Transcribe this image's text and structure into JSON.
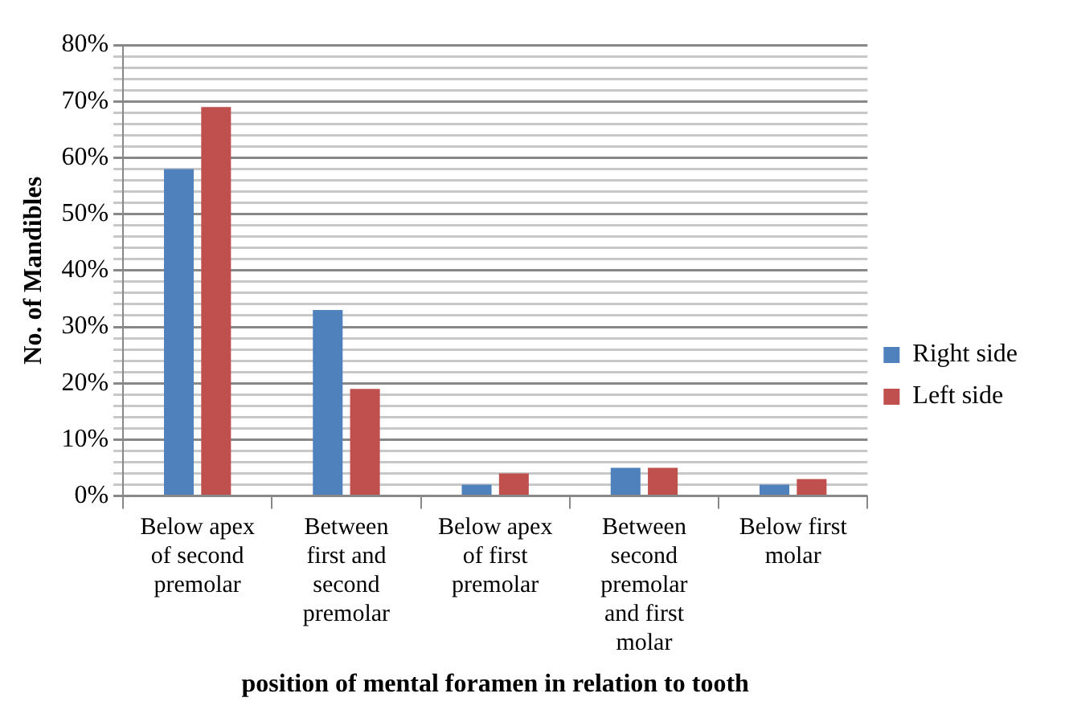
{
  "chart_data": {
    "type": "bar",
    "xlabel": "position of mental foramen in relation to tooth",
    "ylabel": "No. of Mandibles",
    "categories": [
      "Below apex of second premolar",
      "Between first and second premolar",
      "Below apex of first premolar",
      "Between second premolar and first molar",
      "Below first molar"
    ],
    "series": [
      {
        "name": "Right side",
        "color": "#4f81bd",
        "values": [
          58,
          33,
          2,
          5,
          2
        ]
      },
      {
        "name": "Left side",
        "color": "#c0504d",
        "values": [
          69,
          19,
          4,
          5,
          3
        ]
      }
    ],
    "ylim": [
      0,
      80
    ],
    "yticks": [
      {
        "value": 0,
        "label": "0%"
      },
      {
        "value": 2,
        "label": null
      },
      {
        "value": 4,
        "label": null
      },
      {
        "value": 6,
        "label": null
      },
      {
        "value": 8,
        "label": null
      },
      {
        "value": 10,
        "label": "10%"
      },
      {
        "value": 12,
        "label": null
      },
      {
        "value": 14,
        "label": null
      },
      {
        "value": 16,
        "label": null
      },
      {
        "value": 18,
        "label": null
      },
      {
        "value": 20,
        "label": "20%"
      },
      {
        "value": 22,
        "label": null
      },
      {
        "value": 24,
        "label": null
      },
      {
        "value": 26,
        "label": null
      },
      {
        "value": 28,
        "label": null
      },
      {
        "value": 30,
        "label": "30%"
      },
      {
        "value": 32,
        "label": null
      },
      {
        "value": 34,
        "label": null
      },
      {
        "value": 36,
        "label": null
      },
      {
        "value": 38,
        "label": null
      },
      {
        "value": 40,
        "label": "40%"
      },
      {
        "value": 42,
        "label": null
      },
      {
        "value": 44,
        "label": null
      },
      {
        "value": 46,
        "label": null
      },
      {
        "value": 48,
        "label": null
      },
      {
        "value": 50,
        "label": "50%"
      },
      {
        "value": 52,
        "label": null
      },
      {
        "value": 54,
        "label": null
      },
      {
        "value": 56,
        "label": null
      },
      {
        "value": 58,
        "label": null
      },
      {
        "value": 60,
        "label": "60%"
      },
      {
        "value": 62,
        "label": null
      },
      {
        "value": 64,
        "label": null
      },
      {
        "value": 66,
        "label": null
      },
      {
        "value": 68,
        "label": null
      },
      {
        "value": 70,
        "label": "70%"
      },
      {
        "value": 72,
        "label": null
      },
      {
        "value": 74,
        "label": null
      },
      {
        "value": 76,
        "label": null
      },
      {
        "value": 78,
        "label": null
      },
      {
        "value": 80,
        "label": "80%"
      }
    ],
    "grid": true,
    "legend": "right"
  }
}
